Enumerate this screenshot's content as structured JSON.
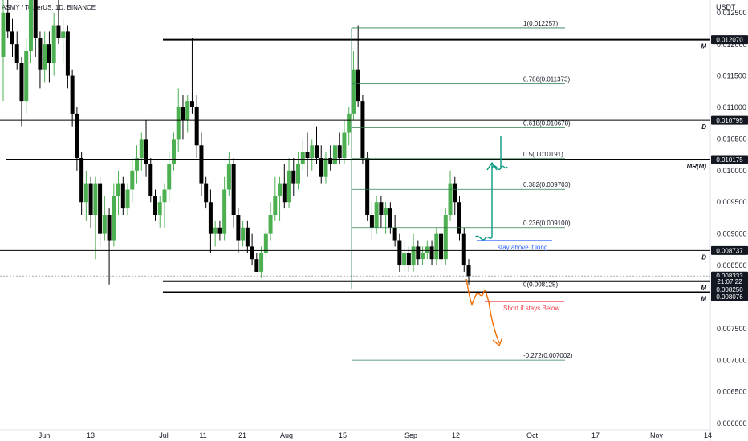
{
  "header": {
    "title": "ASMY / TetherUS, 1D, BINANCE",
    "currency": "USDT"
  },
  "colors": {
    "bull": "#4caf50",
    "bear": "#000000",
    "fib": "#2e7d52",
    "blue": "#2962ff",
    "teal": "#089981",
    "orange": "#ef6c00",
    "red": "#f23645"
  },
  "chart_data": {
    "type": "candlestick",
    "y_axis_label": "USDT",
    "ylim": [
      0.0059,
      0.0127
    ],
    "y_ticks": [
      "0.012500",
      "0.012000",
      "0.011500",
      "0.011000",
      "0.010500",
      "0.010000",
      "0.009500",
      "0.009000",
      "0.008500",
      "0.008000",
      "0.007500",
      "0.007000",
      "0.006500",
      "0.006000"
    ],
    "x_ticks": [
      "Jun",
      "13",
      "Jul",
      "11",
      "21",
      "Aug",
      "15",
      "Sep",
      "12",
      "Oct",
      "17",
      "Nov",
      "14"
    ],
    "price_boxes": [
      {
        "text": "0.012070",
        "value": 0.01207
      },
      {
        "text": "0.010795",
        "value": 0.010795
      },
      {
        "text": "0.010175",
        "value": 0.010175
      },
      {
        "text": "0.008737",
        "value": 0.008737
      },
      {
        "text": "0.008333",
        "value": 0.008333
      },
      {
        "text": "21:07:22",
        "value": 0.0082
      },
      {
        "text": "0.008250",
        "value": 0.00825
      },
      {
        "text": "0.008076",
        "value": 0.008076
      }
    ],
    "level_tags": [
      {
        "text": "M",
        "value": 0.01207
      },
      {
        "text": "D",
        "value": 0.010795
      },
      {
        "text": "MR(M)",
        "value": 0.010175
      },
      {
        "text": "D",
        "value": 0.008737
      },
      {
        "text": "M",
        "value": 0.00825
      },
      {
        "text": "M",
        "value": 0.008076
      }
    ],
    "fib_levels": [
      {
        "label": "1(0.012257)",
        "value": 0.012257
      },
      {
        "label": "0.786(0.011373)",
        "value": 0.011373
      },
      {
        "label": "0.618(0.010678)",
        "value": 0.010678
      },
      {
        "label": "0.5(0.010191)",
        "value": 0.010191
      },
      {
        "label": "0.382(0.009703)",
        "value": 0.009703
      },
      {
        "label": "0.236(0.009100)",
        "value": 0.0091
      },
      {
        "label": "0(0.008125)",
        "value": 0.008125
      },
      {
        "label": "-0.272(0.007002)",
        "value": 0.007002
      }
    ],
    "annotations": [
      "stay above it long",
      "Short if stays Below"
    ],
    "candles": [
      {
        "o": 0.0118,
        "h": 0.0128,
        "l": 0.0111,
        "c": 0.0125
      },
      {
        "o": 0.0125,
        "h": 0.0127,
        "l": 0.0121,
        "c": 0.0122
      },
      {
        "o": 0.0122,
        "h": 0.0124,
        "l": 0.0118,
        "c": 0.012
      },
      {
        "o": 0.012,
        "h": 0.0122,
        "l": 0.0116,
        "c": 0.0117
      },
      {
        "o": 0.0117,
        "h": 0.0118,
        "l": 0.0107,
        "c": 0.0111
      },
      {
        "o": 0.0111,
        "h": 0.0121,
        "l": 0.0109,
        "c": 0.0119
      },
      {
        "o": 0.0119,
        "h": 0.0129,
        "l": 0.0117,
        "c": 0.0127
      },
      {
        "o": 0.0127,
        "h": 0.0128,
        "l": 0.0118,
        "c": 0.0121
      },
      {
        "o": 0.0121,
        "h": 0.0122,
        "l": 0.0113,
        "c": 0.0116
      },
      {
        "o": 0.0116,
        "h": 0.0122,
        "l": 0.0114,
        "c": 0.012
      },
      {
        "o": 0.012,
        "h": 0.0122,
        "l": 0.0114,
        "c": 0.0117
      },
      {
        "o": 0.0117,
        "h": 0.0125,
        "l": 0.0115,
        "c": 0.0123
      },
      {
        "o": 0.0123,
        "h": 0.0127,
        "l": 0.012,
        "c": 0.0121
      },
      {
        "o": 0.0121,
        "h": 0.0124,
        "l": 0.0117,
        "c": 0.0122
      },
      {
        "o": 0.0122,
        "h": 0.0123,
        "l": 0.0113,
        "c": 0.0115
      },
      {
        "o": 0.0115,
        "h": 0.0116,
        "l": 0.0107,
        "c": 0.0109
      },
      {
        "o": 0.0109,
        "h": 0.011,
        "l": 0.01,
        "c": 0.0102
      },
      {
        "o": 0.0102,
        "h": 0.0103,
        "l": 0.0093,
        "c": 0.0095
      },
      {
        "o": 0.0095,
        "h": 0.01,
        "l": 0.0092,
        "c": 0.0098
      },
      {
        "o": 0.0098,
        "h": 0.0099,
        "l": 0.0091,
        "c": 0.0093
      },
      {
        "o": 0.0093,
        "h": 0.0099,
        "l": 0.0086,
        "c": 0.0098
      },
      {
        "o": 0.0098,
        "h": 0.0099,
        "l": 0.0088,
        "c": 0.009
      },
      {
        "o": 0.009,
        "h": 0.0096,
        "l": 0.0089,
        "c": 0.0093
      },
      {
        "o": 0.0093,
        "h": 0.0094,
        "l": 0.0082,
        "c": 0.0089
      },
      {
        "o": 0.0089,
        "h": 0.0098,
        "l": 0.0088,
        "c": 0.0096
      },
      {
        "o": 0.0096,
        "h": 0.01,
        "l": 0.0093,
        "c": 0.0098
      },
      {
        "o": 0.0098,
        "h": 0.0099,
        "l": 0.0093,
        "c": 0.0094
      },
      {
        "o": 0.0094,
        "h": 0.0098,
        "l": 0.0093,
        "c": 0.0097
      },
      {
        "o": 0.0097,
        "h": 0.0102,
        "l": 0.0095,
        "c": 0.01
      },
      {
        "o": 0.01,
        "h": 0.0104,
        "l": 0.0098,
        "c": 0.0102
      },
      {
        "o": 0.0102,
        "h": 0.0106,
        "l": 0.01,
        "c": 0.0105
      },
      {
        "o": 0.0105,
        "h": 0.0108,
        "l": 0.0099,
        "c": 0.0101
      },
      {
        "o": 0.0101,
        "h": 0.0102,
        "l": 0.0095,
        "c": 0.0096
      },
      {
        "o": 0.0096,
        "h": 0.0097,
        "l": 0.0092,
        "c": 0.0093
      },
      {
        "o": 0.0093,
        "h": 0.0096,
        "l": 0.0091,
        "c": 0.0095
      },
      {
        "o": 0.0095,
        "h": 0.0098,
        "l": 0.0091,
        "c": 0.0097
      },
      {
        "o": 0.0097,
        "h": 0.0103,
        "l": 0.0095,
        "c": 0.0101
      },
      {
        "o": 0.0101,
        "h": 0.0106,
        "l": 0.01,
        "c": 0.0105
      },
      {
        "o": 0.0105,
        "h": 0.0113,
        "l": 0.0103,
        "c": 0.011
      },
      {
        "o": 0.011,
        "h": 0.0112,
        "l": 0.0105,
        "c": 0.0108
      },
      {
        "o": 0.0108,
        "h": 0.0112,
        "l": 0.0106,
        "c": 0.0111
      },
      {
        "o": 0.0111,
        "h": 0.0121,
        "l": 0.0109,
        "c": 0.011
      },
      {
        "o": 0.011,
        "h": 0.0112,
        "l": 0.0102,
        "c": 0.0104
      },
      {
        "o": 0.0104,
        "h": 0.0106,
        "l": 0.0096,
        "c": 0.0098
      },
      {
        "o": 0.0098,
        "h": 0.0099,
        "l": 0.0094,
        "c": 0.0095
      },
      {
        "o": 0.0095,
        "h": 0.0097,
        "l": 0.0087,
        "c": 0.009
      },
      {
        "o": 0.009,
        "h": 0.0092,
        "l": 0.0088,
        "c": 0.0091
      },
      {
        "o": 0.0091,
        "h": 0.0092,
        "l": 0.0089,
        "c": 0.009
      },
      {
        "o": 0.009,
        "h": 0.0099,
        "l": 0.0089,
        "c": 0.0097
      },
      {
        "o": 0.0097,
        "h": 0.0103,
        "l": 0.0096,
        "c": 0.0101
      },
      {
        "o": 0.0101,
        "h": 0.0102,
        "l": 0.0091,
        "c": 0.0093
      },
      {
        "o": 0.0093,
        "h": 0.0094,
        "l": 0.0087,
        "c": 0.0089
      },
      {
        "o": 0.0089,
        "h": 0.0092,
        "l": 0.0088,
        "c": 0.0091
      },
      {
        "o": 0.0091,
        "h": 0.0092,
        "l": 0.0087,
        "c": 0.0088
      },
      {
        "o": 0.0088,
        "h": 0.009,
        "l": 0.0085,
        "c": 0.0086
      },
      {
        "o": 0.0086,
        "h": 0.0087,
        "l": 0.0084,
        "c": 0.0084
      },
      {
        "o": 0.0084,
        "h": 0.0088,
        "l": 0.0083,
        "c": 0.0087
      },
      {
        "o": 0.0087,
        "h": 0.0091,
        "l": 0.0086,
        "c": 0.009
      },
      {
        "o": 0.009,
        "h": 0.0095,
        "l": 0.0089,
        "c": 0.0093
      },
      {
        "o": 0.0093,
        "h": 0.0099,
        "l": 0.0092,
        "c": 0.0096
      },
      {
        "o": 0.0096,
        "h": 0.0099,
        "l": 0.0092,
        "c": 0.0098
      },
      {
        "o": 0.0098,
        "h": 0.0101,
        "l": 0.0094,
        "c": 0.0095
      },
      {
        "o": 0.0095,
        "h": 0.0102,
        "l": 0.0094,
        "c": 0.01
      },
      {
        "o": 0.01,
        "h": 0.0102,
        "l": 0.0096,
        "c": 0.0098
      },
      {
        "o": 0.0098,
        "h": 0.0103,
        "l": 0.0097,
        "c": 0.0101
      },
      {
        "o": 0.0101,
        "h": 0.0105,
        "l": 0.01,
        "c": 0.0103
      },
      {
        "o": 0.0103,
        "h": 0.0106,
        "l": 0.0099,
        "c": 0.0102
      },
      {
        "o": 0.0102,
        "h": 0.0105,
        "l": 0.01,
        "c": 0.0104
      },
      {
        "o": 0.0104,
        "h": 0.0107,
        "l": 0.0101,
        "c": 0.0102
      },
      {
        "o": 0.0102,
        "h": 0.0104,
        "l": 0.0098,
        "c": 0.0099
      },
      {
        "o": 0.0099,
        "h": 0.0103,
        "l": 0.0098,
        "c": 0.0102
      },
      {
        "o": 0.0102,
        "h": 0.0104,
        "l": 0.01,
        "c": 0.0101
      },
      {
        "o": 0.0101,
        "h": 0.0105,
        "l": 0.01,
        "c": 0.0104
      },
      {
        "o": 0.0104,
        "h": 0.0106,
        "l": 0.0101,
        "c": 0.0102
      },
      {
        "o": 0.0102,
        "h": 0.0108,
        "l": 0.0101,
        "c": 0.0106
      },
      {
        "o": 0.0106,
        "h": 0.011,
        "l": 0.0104,
        "c": 0.0109
      },
      {
        "o": 0.0109,
        "h": 0.0119,
        "l": 0.0108,
        "c": 0.0116
      },
      {
        "o": 0.0116,
        "h": 0.0123,
        "l": 0.011,
        "c": 0.0111
      },
      {
        "o": 0.0111,
        "h": 0.0112,
        "l": 0.0101,
        "c": 0.0102
      },
      {
        "o": 0.0102,
        "h": 0.0103,
        "l": 0.0092,
        "c": 0.0093
      },
      {
        "o": 0.0093,
        "h": 0.0095,
        "l": 0.0089,
        "c": 0.0091
      },
      {
        "o": 0.0091,
        "h": 0.0096,
        "l": 0.009,
        "c": 0.0095
      },
      {
        "o": 0.0095,
        "h": 0.0096,
        "l": 0.0091,
        "c": 0.0093
      },
      {
        "o": 0.0093,
        "h": 0.0095,
        "l": 0.009,
        "c": 0.0094
      },
      {
        "o": 0.0094,
        "h": 0.0095,
        "l": 0.009,
        "c": 0.0091
      },
      {
        "o": 0.0091,
        "h": 0.0093,
        "l": 0.0088,
        "c": 0.0089
      },
      {
        "o": 0.0089,
        "h": 0.009,
        "l": 0.0084,
        "c": 0.0085
      },
      {
        "o": 0.0085,
        "h": 0.0089,
        "l": 0.0084,
        "c": 0.0087
      },
      {
        "o": 0.0087,
        "h": 0.0088,
        "l": 0.0084,
        "c": 0.0085
      },
      {
        "o": 0.0085,
        "h": 0.009,
        "l": 0.0084,
        "c": 0.0088
      },
      {
        "o": 0.0088,
        "h": 0.0089,
        "l": 0.0085,
        "c": 0.0086
      },
      {
        "o": 0.0086,
        "h": 0.0088,
        "l": 0.0085,
        "c": 0.0087
      },
      {
        "o": 0.0087,
        "h": 0.0089,
        "l": 0.0086,
        "c": 0.0088
      },
      {
        "o": 0.0088,
        "h": 0.0089,
        "l": 0.0085,
        "c": 0.0086
      },
      {
        "o": 0.0086,
        "h": 0.0091,
        "l": 0.0085,
        "c": 0.009
      },
      {
        "o": 0.009,
        "h": 0.0091,
        "l": 0.0085,
        "c": 0.0086
      },
      {
        "o": 0.0086,
        "h": 0.0094,
        "l": 0.0085,
        "c": 0.0093
      },
      {
        "o": 0.0093,
        "h": 0.01,
        "l": 0.0092,
        "c": 0.0098
      },
      {
        "o": 0.0098,
        "h": 0.0099,
        "l": 0.0093,
        "c": 0.0095
      },
      {
        "o": 0.0095,
        "h": 0.0096,
        "l": 0.0089,
        "c": 0.009
      },
      {
        "o": 0.009,
        "h": 0.0091,
        "l": 0.0084,
        "c": 0.0085
      },
      {
        "o": 0.0085,
        "h": 0.0086,
        "l": 0.0082,
        "c": 0.00833
      }
    ]
  }
}
